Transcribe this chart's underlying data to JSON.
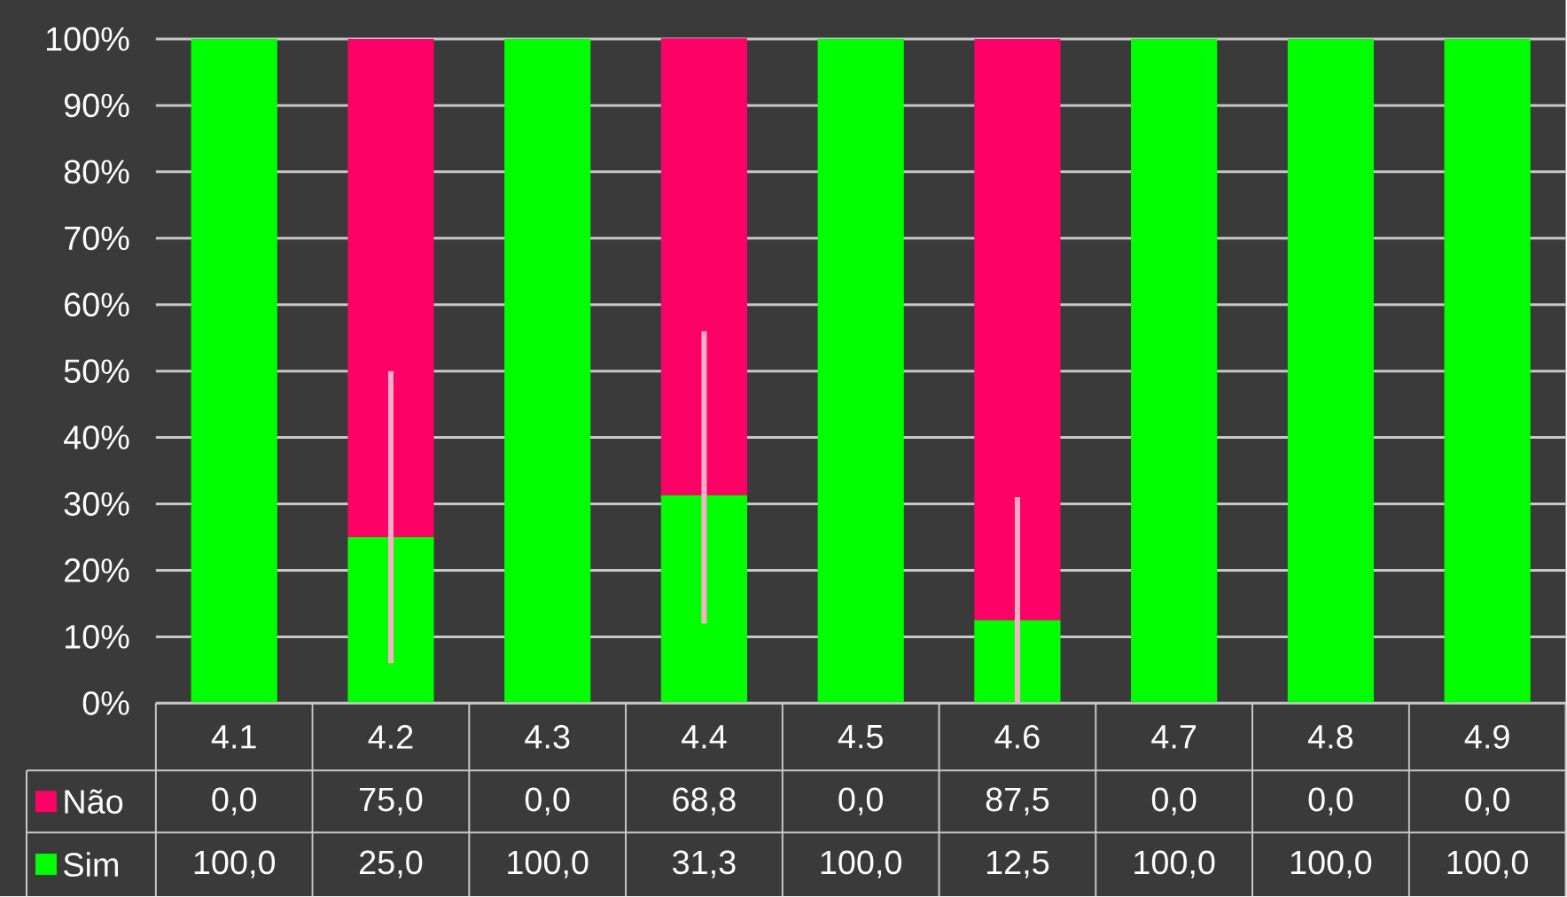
{
  "chart_data": {
    "type": "bar",
    "stacked": true,
    "categories": [
      "4.1",
      "4.2",
      "4.3",
      "4.4",
      "4.5",
      "4.6",
      "4.7",
      "4.8",
      "4.9"
    ],
    "series": [
      {
        "name": "Sim",
        "color": "#00ff00",
        "values": [
          100,
          25,
          100,
          31.3,
          100,
          12.5,
          100,
          100,
          100
        ],
        "value_labels": [
          "100,0",
          "25,0",
          "100,0",
          "31,3",
          "100,0",
          "12,5",
          "100,0",
          "100,0",
          "100,0"
        ],
        "errors": [
          null,
          [
            6,
            50
          ],
          null,
          [
            12,
            56
          ],
          null,
          [
            0,
            31
          ],
          null,
          null,
          null
        ]
      },
      {
        "name": "Não",
        "color": "#ff0066",
        "values": [
          0,
          75,
          0,
          68.8,
          0,
          87.5,
          0,
          0,
          0
        ],
        "value_labels": [
          "0,0",
          "75,0",
          "0,0",
          "68,8",
          "0,0",
          "87,5",
          "0,0",
          "0,0",
          "0,0"
        ]
      }
    ],
    "ylim": [
      0,
      100
    ],
    "yticks": [
      {
        "value": 0,
        "label": "0%"
      },
      {
        "value": 10,
        "label": "10%"
      },
      {
        "value": 20,
        "label": "20%"
      },
      {
        "value": 30,
        "label": "30%"
      },
      {
        "value": 40,
        "label": "40%"
      },
      {
        "value": 50,
        "label": "50%"
      },
      {
        "value": 60,
        "label": "60%"
      },
      {
        "value": 70,
        "label": "70%"
      },
      {
        "value": 80,
        "label": "80%"
      },
      {
        "value": 90,
        "label": "90%"
      },
      {
        "value": 100,
        "label": "100%"
      }
    ],
    "grid": "y",
    "legend": "bottom left"
  }
}
